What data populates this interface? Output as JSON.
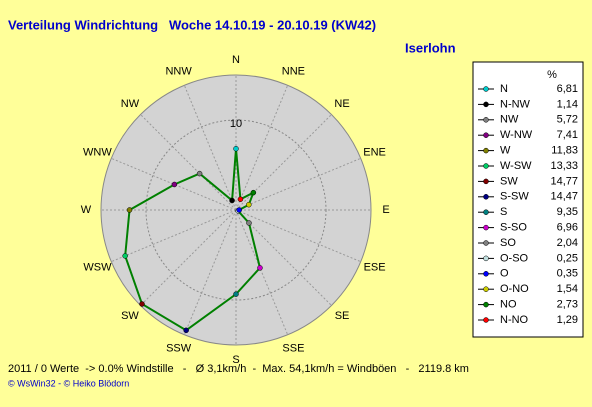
{
  "chart_data": {
    "type": "polar",
    "title": "Verteilung Windrichtung   Woche 14.10.19 - 20.10.19 (KW42)",
    "subtitle": "Iserlohn",
    "categories": [
      "N",
      "NNE",
      "NE",
      "ENE",
      "E",
      "ESE",
      "SE",
      "SSE",
      "S",
      "SSW",
      "SW",
      "WSW",
      "W",
      "WNW",
      "NW",
      "NNW"
    ],
    "legend_title": "%",
    "directions": [
      "N",
      "N-NW",
      "NW",
      "W-NW",
      "W",
      "W-SW",
      "SW",
      "S-SW",
      "S",
      "S-SO",
      "SO",
      "O-SO",
      "O",
      "O-NO",
      "NO",
      "N-NO"
    ],
    "values": [
      6.81,
      1.14,
      5.72,
      7.41,
      11.83,
      13.33,
      14.77,
      14.47,
      9.35,
      6.96,
      2.04,
      0.25,
      0.35,
      1.54,
      2.73,
      1.29
    ],
    "value_labels": [
      "6,81",
      "1,14",
      "5,72",
      "7,41",
      "11,83",
      "13,33",
      "14,77",
      "14,47",
      "9,35",
      "6,96",
      "2,04",
      "0,25",
      "0,35",
      "1,54",
      "2,73",
      "1,29"
    ],
    "colors": [
      "#00cccc",
      "#000000",
      "#808080",
      "#800080",
      "#808000",
      "#00cc66",
      "#800000",
      "#000080",
      "#008080",
      "#cc00cc",
      "#808080",
      "#c0e0e0",
      "#0000ff",
      "#cccc00",
      "#008000",
      "#ff0000"
    ],
    "line_color": "#008000",
    "rlim": [
      0,
      15
    ],
    "rticks": [
      10
    ],
    "footer": "2011 / 0 Werte  -> 0.0% Windstille   -   Ø 3,1km/h  -  Max. 54,1km/h = Windböen   -   2119.8 km",
    "credit": "© WsWin32  - © Heiko Blödorn"
  }
}
